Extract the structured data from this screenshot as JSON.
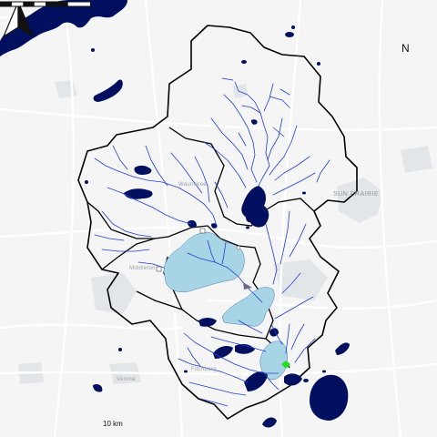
{
  "colors": {
    "background": "#f4f5f4",
    "road": "#ffffff",
    "urban": "#e4e6e8",
    "lake_dark": "#00105e",
    "lake_light": "#a8d5e6",
    "stream": "#1f3dd1",
    "boundary": "#000000",
    "outlet_marker": "#22dd22"
  },
  "labels": {
    "sun_prairie": "SUN PRAIRIE",
    "middleton": "Middleton",
    "verona": "Verona",
    "fitchburg": "Fitchburg",
    "waunakee": "Waunakee"
  },
  "north_arrow": {
    "label": "N",
    "icon": "north-arrow-icon"
  },
  "scale_bar": {
    "label": "10 km"
  }
}
